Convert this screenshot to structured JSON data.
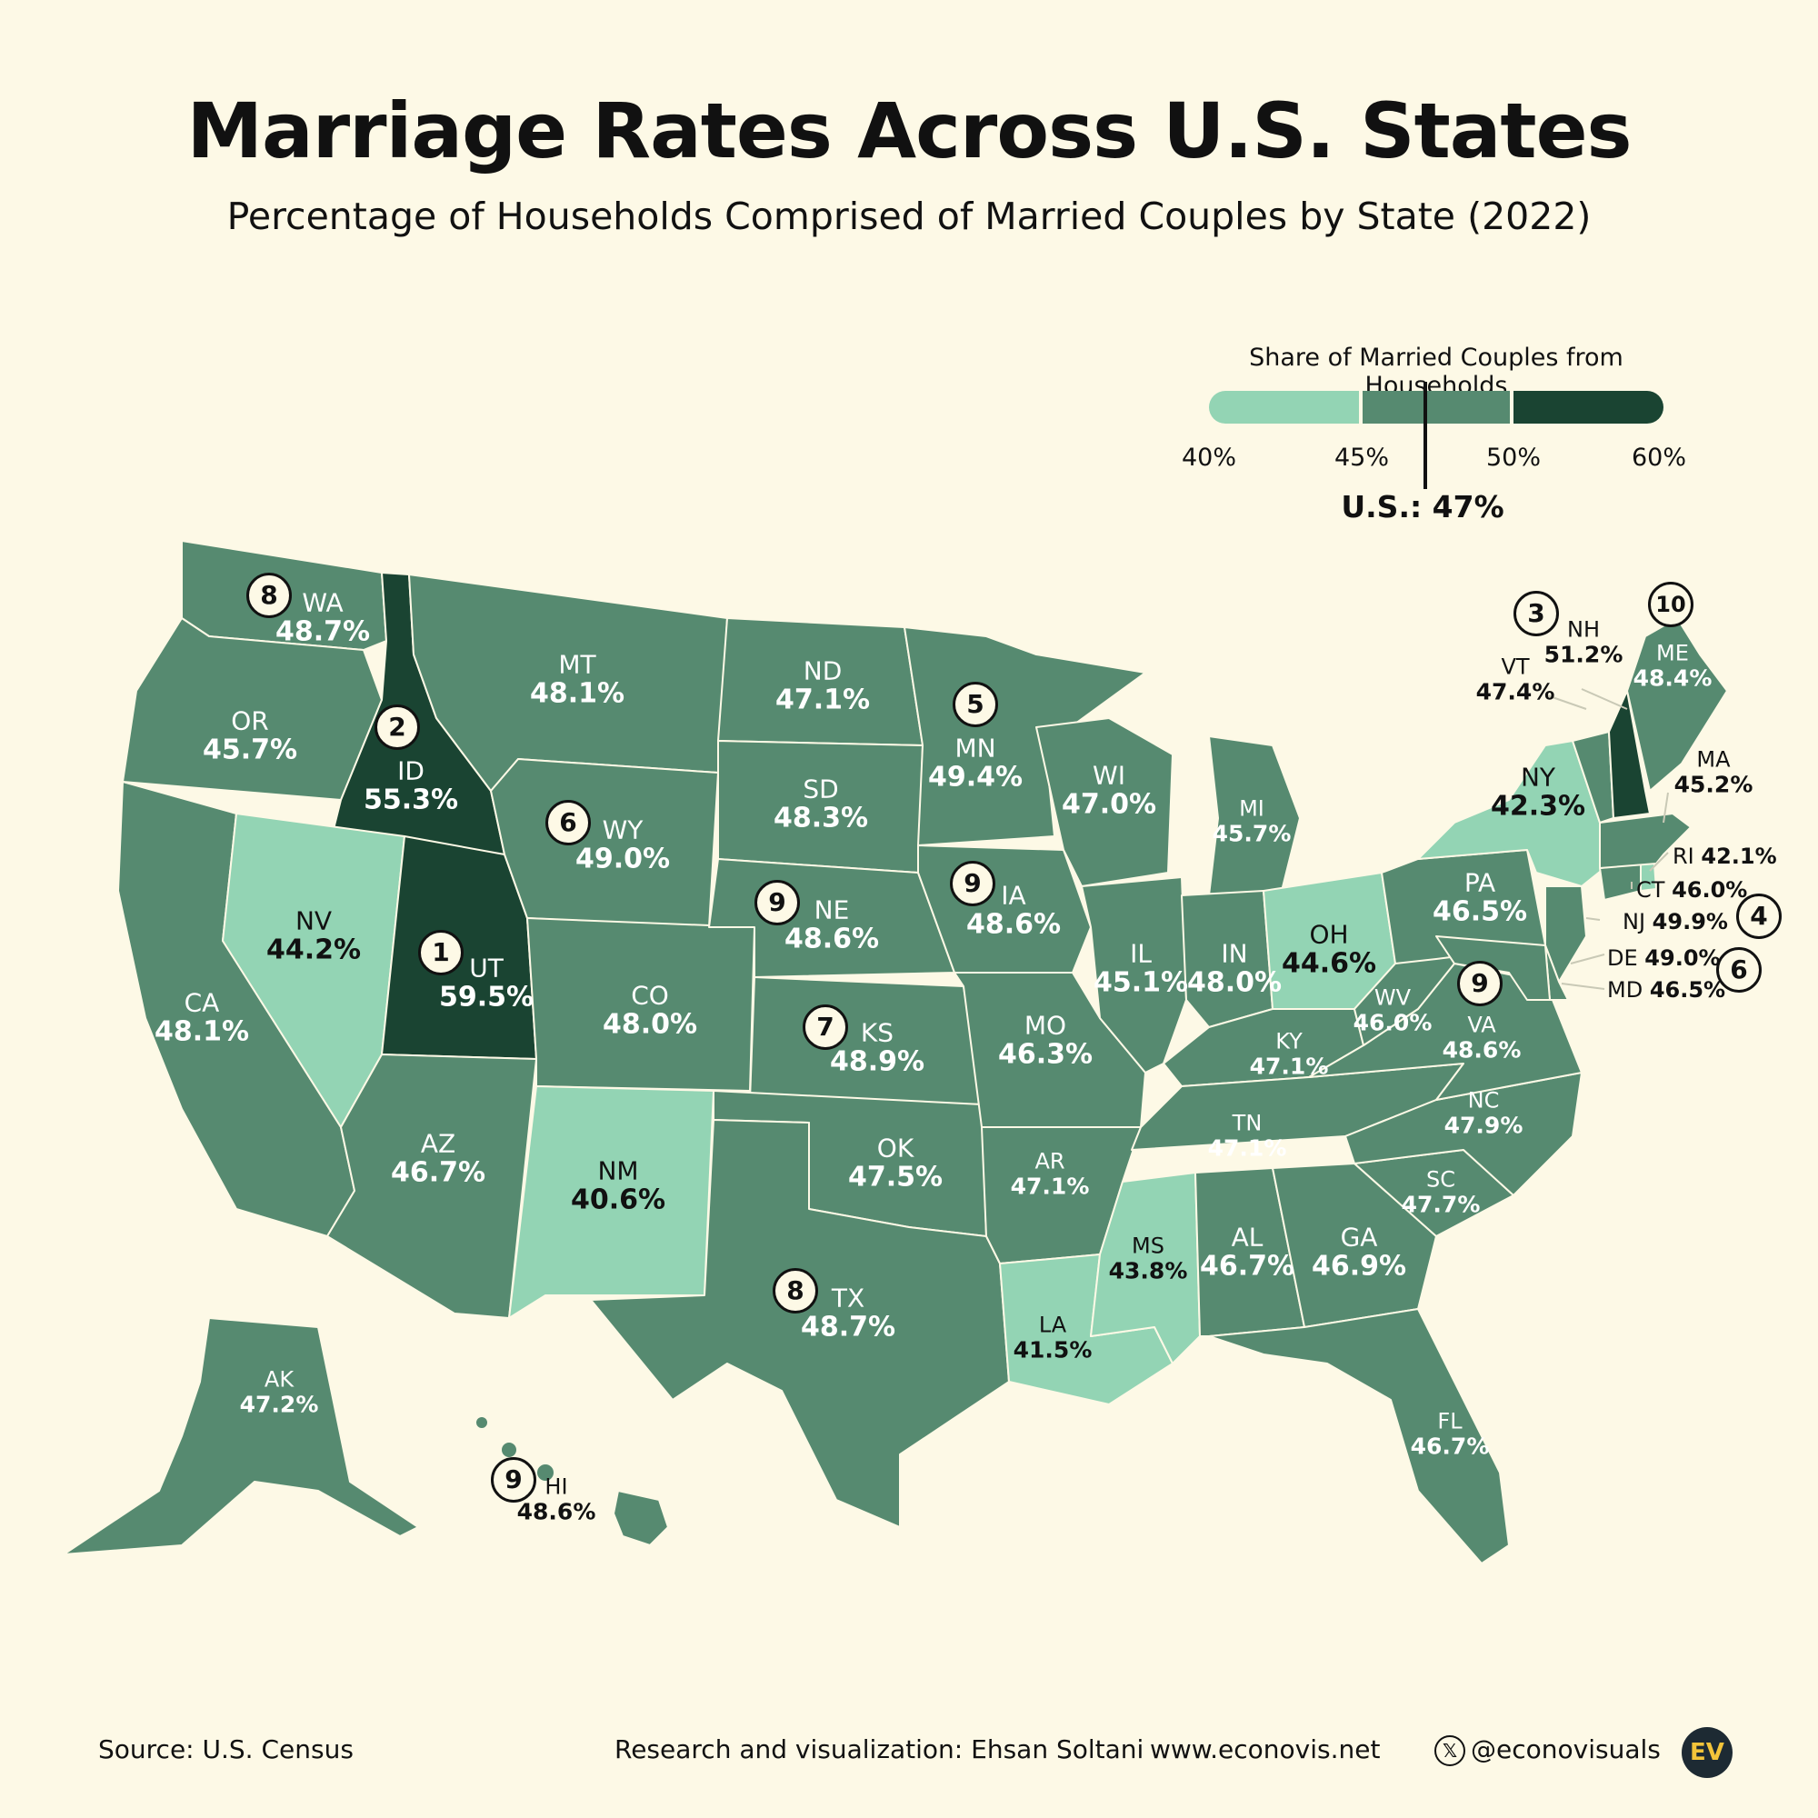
{
  "title": "Marriage Rates Across U.S. States",
  "subtitle": "Percentage of Households Comprised of Married Couples by State (2022)",
  "legend": {
    "title": "Share of Married Couples from Households",
    "ticks": [
      "40%",
      "45%",
      "50%",
      "60%"
    ],
    "average_label": "U.S.: 47%",
    "average_value": 47,
    "bins": [
      {
        "from": 40,
        "to": 45,
        "color": "#93d4b4"
      },
      {
        "from": 45,
        "to": 50,
        "color": "#568a70"
      },
      {
        "from": 50,
        "to": 60,
        "color": "#1a4432"
      }
    ]
  },
  "states": {
    "WA": {
      "abbr": "WA",
      "pct": "48.7%",
      "value": 48.7,
      "rank": "8"
    },
    "OR": {
      "abbr": "OR",
      "pct": "45.7%",
      "value": 45.7
    },
    "CA": {
      "abbr": "CA",
      "pct": "48.1%",
      "value": 48.1
    },
    "ID": {
      "abbr": "ID",
      "pct": "55.3%",
      "value": 55.3,
      "rank": "2"
    },
    "NV": {
      "abbr": "NV",
      "pct": "44.2%",
      "value": 44.2
    },
    "UT": {
      "abbr": "UT",
      "pct": "59.5%",
      "value": 59.5,
      "rank": "1"
    },
    "AZ": {
      "abbr": "AZ",
      "pct": "46.7%",
      "value": 46.7
    },
    "MT": {
      "abbr": "MT",
      "pct": "48.1%",
      "value": 48.1
    },
    "WY": {
      "abbr": "WY",
      "pct": "49.0%",
      "value": 49.0,
      "rank": "6"
    },
    "CO": {
      "abbr": "CO",
      "pct": "48.0%",
      "value": 48.0
    },
    "NM": {
      "abbr": "NM",
      "pct": "40.6%",
      "value": 40.6
    },
    "ND": {
      "abbr": "ND",
      "pct": "47.1%",
      "value": 47.1
    },
    "SD": {
      "abbr": "SD",
      "pct": "48.3%",
      "value": 48.3
    },
    "NE": {
      "abbr": "NE",
      "pct": "48.6%",
      "value": 48.6,
      "rank": "9"
    },
    "KS": {
      "abbr": "KS",
      "pct": "48.9%",
      "value": 48.9,
      "rank": "7"
    },
    "OK": {
      "abbr": "OK",
      "pct": "47.5%",
      "value": 47.5
    },
    "TX": {
      "abbr": "TX",
      "pct": "48.7%",
      "value": 48.7,
      "rank": "8"
    },
    "MN": {
      "abbr": "MN",
      "pct": "49.4%",
      "value": 49.4,
      "rank": "5"
    },
    "IA": {
      "abbr": "IA",
      "pct": "48.6%",
      "value": 48.6,
      "rank": "9"
    },
    "MO": {
      "abbr": "MO",
      "pct": "46.3%",
      "value": 46.3
    },
    "AR": {
      "abbr": "AR",
      "pct": "47.1%",
      "value": 47.1
    },
    "LA": {
      "abbr": "LA",
      "pct": "41.5%",
      "value": 41.5
    },
    "WI": {
      "abbr": "WI",
      "pct": "47.0%",
      "value": 47.0
    },
    "IL": {
      "abbr": "IL",
      "pct": "45.1%",
      "value": 45.1
    },
    "MI": {
      "abbr": "MI",
      "pct": "45.7%",
      "value": 45.7
    },
    "IN": {
      "abbr": "IN",
      "pct": "48.0%",
      "value": 48.0
    },
    "OH": {
      "abbr": "OH",
      "pct": "44.6%",
      "value": 44.6
    },
    "KY": {
      "abbr": "KY",
      "pct": "47.1%",
      "value": 47.1
    },
    "TN": {
      "abbr": "TN",
      "pct": "47.1%",
      "value": 47.1
    },
    "MS": {
      "abbr": "MS",
      "pct": "43.8%",
      "value": 43.8
    },
    "AL": {
      "abbr": "AL",
      "pct": "46.7%",
      "value": 46.7
    },
    "GA": {
      "abbr": "GA",
      "pct": "46.9%",
      "value": 46.9
    },
    "FL": {
      "abbr": "FL",
      "pct": "46.7%",
      "value": 46.7
    },
    "SC": {
      "abbr": "SC",
      "pct": "47.7%",
      "value": 47.7
    },
    "NC": {
      "abbr": "NC",
      "pct": "47.9%",
      "value": 47.9
    },
    "VA": {
      "abbr": "VA",
      "pct": "48.6%",
      "value": 48.6,
      "rank": "9"
    },
    "WV": {
      "abbr": "WV",
      "pct": "46.0%",
      "value": 46.0
    },
    "PA": {
      "abbr": "PA",
      "pct": "46.5%",
      "value": 46.5
    },
    "NY": {
      "abbr": "NY",
      "pct": "42.3%",
      "value": 42.3
    },
    "VT": {
      "abbr": "VT",
      "pct": "47.4%",
      "value": 47.4
    },
    "NH": {
      "abbr": "NH",
      "pct": "51.2%",
      "value": 51.2,
      "rank": "3"
    },
    "ME": {
      "abbr": "ME",
      "pct": "48.4%",
      "value": 48.4,
      "rank": "10"
    },
    "MA": {
      "abbr": "MA",
      "pct": "45.2%",
      "value": 45.2
    },
    "RI": {
      "abbr": "RI",
      "pct": "42.1%",
      "value": 42.1
    },
    "CT": {
      "abbr": "CT",
      "pct": "46.0%",
      "value": 46.0
    },
    "NJ": {
      "abbr": "NJ",
      "pct": "49.9%",
      "value": 49.9,
      "rank": "4"
    },
    "DE": {
      "abbr": "DE",
      "pct": "49.0%",
      "value": 49.0,
      "rank": "6"
    },
    "MD": {
      "abbr": "MD",
      "pct": "46.5%",
      "value": 46.5
    },
    "AK": {
      "abbr": "AK",
      "pct": "47.2%",
      "value": 47.2
    },
    "HI": {
      "abbr": "HI",
      "pct": "48.6%",
      "value": 48.6,
      "rank": "9"
    }
  },
  "footer": {
    "source": "Source: U.S. Census",
    "credit": "Research and visualization: Ehsan Soltani",
    "website": "www.econovis.net",
    "handle": "@econovisuals",
    "logo": "EV",
    "x_icon": "x-logo-icon"
  }
}
